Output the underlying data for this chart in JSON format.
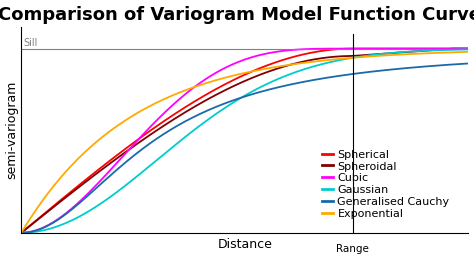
{
  "title": "Comparison of Variogram Model Function Curves",
  "xlabel": "Distance",
  "ylabel": "semi-variogram",
  "sill": 1.0,
  "range_param": 1.0,
  "sill_label": "Sill",
  "range_label": "Range",
  "background_color": "#ffffff",
  "title_fontsize": 13,
  "axis_label_fontsize": 9,
  "legend_fontsize": 8,
  "models": [
    {
      "name": "Spherical",
      "color": "#ff0000"
    },
    {
      "name": "Spheroidal",
      "color": "#800000"
    },
    {
      "name": "Cubic",
      "color": "#ff00ff"
    },
    {
      "name": "Gaussian",
      "color": "#00cccc"
    },
    {
      "name": "Generalised Cauchy",
      "color": "#1a6aaa"
    },
    {
      "name": "Exponential",
      "color": "#ffaa00"
    }
  ]
}
